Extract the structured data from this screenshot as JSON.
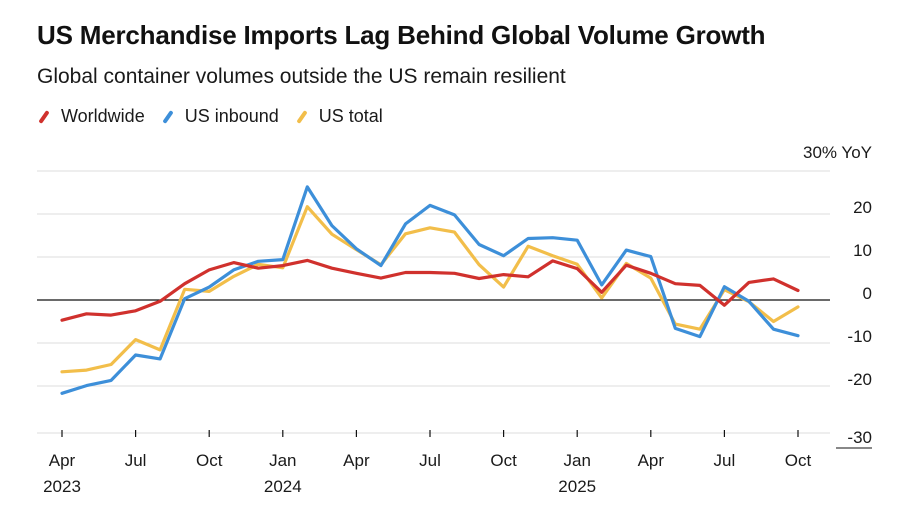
{
  "title": "US Merchandise Imports Lag Behind Global Volume Growth",
  "subtitle": "Global container volumes outside the US remain resilient",
  "chart_data": {
    "type": "line",
    "ylabel": "30% YoY",
    "ylim": [
      -30,
      30
    ],
    "yticks": [
      20,
      10,
      0,
      -10,
      -20,
      -30
    ],
    "x_months": [
      "2023-04",
      "2023-05",
      "2023-06",
      "2023-07",
      "2023-08",
      "2023-09",
      "2023-10",
      "2023-11",
      "2023-12",
      "2024-01",
      "2024-02",
      "2024-03",
      "2024-04",
      "2024-05",
      "2024-06",
      "2024-07",
      "2024-08",
      "2024-09",
      "2024-10",
      "2024-11",
      "2024-12",
      "2025-01",
      "2025-02",
      "2025-03",
      "2025-04",
      "2025-05",
      "2025-06",
      "2025-07",
      "2025-08",
      "2025-09",
      "2025-10"
    ],
    "x_tick_labels": [
      {
        "label": "Apr",
        "year": "2023",
        "index": 0
      },
      {
        "label": "Jul",
        "year": "",
        "index": 3
      },
      {
        "label": "Oct",
        "year": "",
        "index": 6
      },
      {
        "label": "Jan",
        "year": "2024",
        "index": 9
      },
      {
        "label": "Apr",
        "year": "",
        "index": 12
      },
      {
        "label": "Jul",
        "year": "",
        "index": 15
      },
      {
        "label": "Oct",
        "year": "",
        "index": 18
      },
      {
        "label": "Jan",
        "year": "2025",
        "index": 21
      },
      {
        "label": "Apr",
        "year": "",
        "index": 24
      },
      {
        "label": "Jul",
        "year": "",
        "index": 27
      },
      {
        "label": "Oct",
        "year": "",
        "index": 30
      }
    ],
    "series": [
      {
        "name": "Worldwide",
        "color": "#d0312d",
        "values": [
          -4.7,
          -3.2,
          -3.5,
          -2.5,
          -0.3,
          3.8,
          7.0,
          8.7,
          7.4,
          8.0,
          9.2,
          7.4,
          6.2,
          5.1,
          6.4,
          6.4,
          6.2,
          5.0,
          5.9,
          5.4,
          9.1,
          7.3,
          1.8,
          8.1,
          6.2,
          3.8,
          3.4,
          -1.2,
          4.1,
          4.9,
          2.2
        ]
      },
      {
        "name": "US inbound",
        "color": "#3d8fd9",
        "values": [
          -21.7,
          -19.9,
          -18.7,
          -12.8,
          -13.7,
          0.3,
          3.0,
          7.0,
          9.0,
          9.4,
          26.3,
          17.3,
          11.9,
          8.0,
          17.7,
          22.0,
          19.8,
          12.9,
          10.3,
          14.3,
          14.5,
          13.9,
          3.5,
          11.6,
          10.1,
          -6.6,
          -8.5,
          3.1,
          -0.3,
          -6.8,
          -8.3
        ]
      },
      {
        "name": "US total",
        "color": "#f2be4a",
        "values": [
          -16.7,
          -16.3,
          -15.0,
          -9.2,
          -11.6,
          2.5,
          2.0,
          5.5,
          8.3,
          7.5,
          21.7,
          15.3,
          11.7,
          8.2,
          15.4,
          16.8,
          15.8,
          8.2,
          3.0,
          12.5,
          10.3,
          8.3,
          0.5,
          8.5,
          5.1,
          -5.6,
          -6.8,
          2.4,
          -0.4,
          -5.0,
          -1.6
        ]
      }
    ]
  }
}
